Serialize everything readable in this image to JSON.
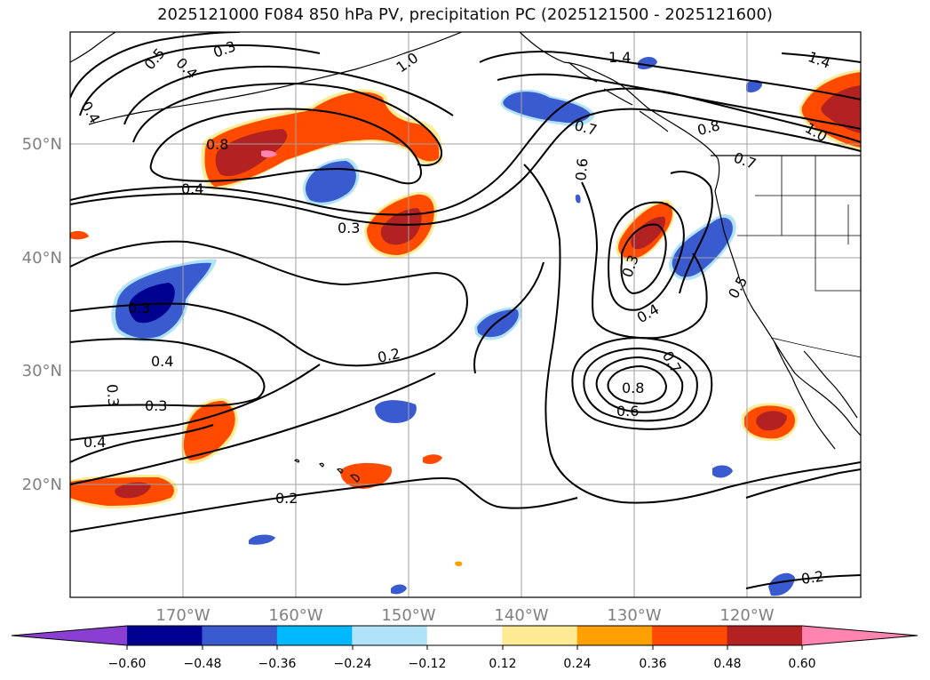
{
  "title": "2025121000 F084 850 hPa PV, precipitation PC (2025121500 - 2025121600)",
  "axes": {
    "lon_labels": [
      "170°W",
      "160°W",
      "150°W",
      "140°W",
      "130°W",
      "120°W"
    ],
    "lat_labels": [
      "50°N",
      "40°N",
      "30°N",
      "20°N"
    ]
  },
  "contour_labels": [
    {
      "text": "0.5"
    },
    {
      "text": "0.4"
    },
    {
      "text": "0.3"
    },
    {
      "text": "1.0"
    },
    {
      "text": "1.4"
    },
    {
      "text": "1.4"
    },
    {
      "text": "0.4"
    },
    {
      "text": "0.8"
    },
    {
      "text": "0.4"
    },
    {
      "text": "0.3"
    },
    {
      "text": "0.7"
    },
    {
      "text": "0.6"
    },
    {
      "text": "0.8"
    },
    {
      "text": "0.7"
    },
    {
      "text": "1.0"
    },
    {
      "text": "0.3"
    },
    {
      "text": "0.4"
    },
    {
      "text": "0.5"
    },
    {
      "text": "0.3"
    },
    {
      "text": "0.4"
    },
    {
      "text": "0.2"
    },
    {
      "text": "0.7"
    },
    {
      "text": "0.8"
    },
    {
      "text": "0.6"
    },
    {
      "text": "0.3"
    },
    {
      "text": "0.3"
    },
    {
      "text": "0.4"
    },
    {
      "text": "0.2"
    },
    {
      "text": "0.2"
    }
  ],
  "colorbar": {
    "ticks": [
      "−0.60",
      "−0.48",
      "−0.36",
      "−0.24",
      "−0.12",
      "0.12",
      "0.24",
      "0.36",
      "0.48",
      "0.60"
    ],
    "colors": [
      "#8b3fd2",
      "#000090",
      "#3a5bd0",
      "#00b8ff",
      "#b0e2f8",
      "#ffffff",
      "#ffeb94",
      "#ffa000",
      "#ff4a00",
      "#b22222",
      "#ff85b0"
    ]
  },
  "colors": {
    "land_outline": "#000000",
    "contour": "#000000",
    "grid": "#a0a0a0",
    "axis_label": "#808080"
  }
}
